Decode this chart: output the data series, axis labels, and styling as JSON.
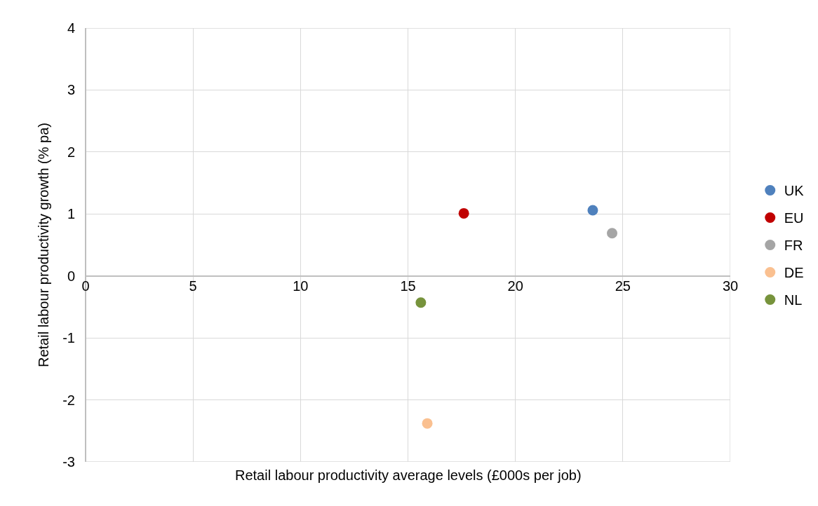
{
  "chart_data": {
    "type": "scatter",
    "xlabel": "Retail labour productivity average levels (£000s per job)",
    "ylabel": "Retail labour productivity growth (% pa)",
    "series": [
      {
        "name": "UK",
        "color": "#4f81bd",
        "x": [
          23.6
        ],
        "values": [
          1.06
        ]
      },
      {
        "name": "EU",
        "color": "#c00000",
        "x": [
          17.6
        ],
        "values": [
          1.01
        ]
      },
      {
        "name": "FR",
        "color": "#a5a5a5",
        "x": [
          24.5
        ],
        "values": [
          0.69
        ]
      },
      {
        "name": "DE",
        "color": "#fac090",
        "x": [
          15.9
        ],
        "values": [
          -2.38
        ]
      },
      {
        "name": "NL",
        "color": "#77933c",
        "x": [
          15.6
        ],
        "values": [
          -0.43
        ]
      }
    ],
    "xlim": [
      0,
      30
    ],
    "xticks": [
      0,
      5,
      10,
      15,
      20,
      25,
      30
    ],
    "ylim": [
      -3,
      4
    ],
    "yticks": [
      -3,
      -2,
      -1,
      0,
      1,
      2,
      3,
      4
    ],
    "grid": true,
    "legend": "right",
    "marker": "circle"
  }
}
